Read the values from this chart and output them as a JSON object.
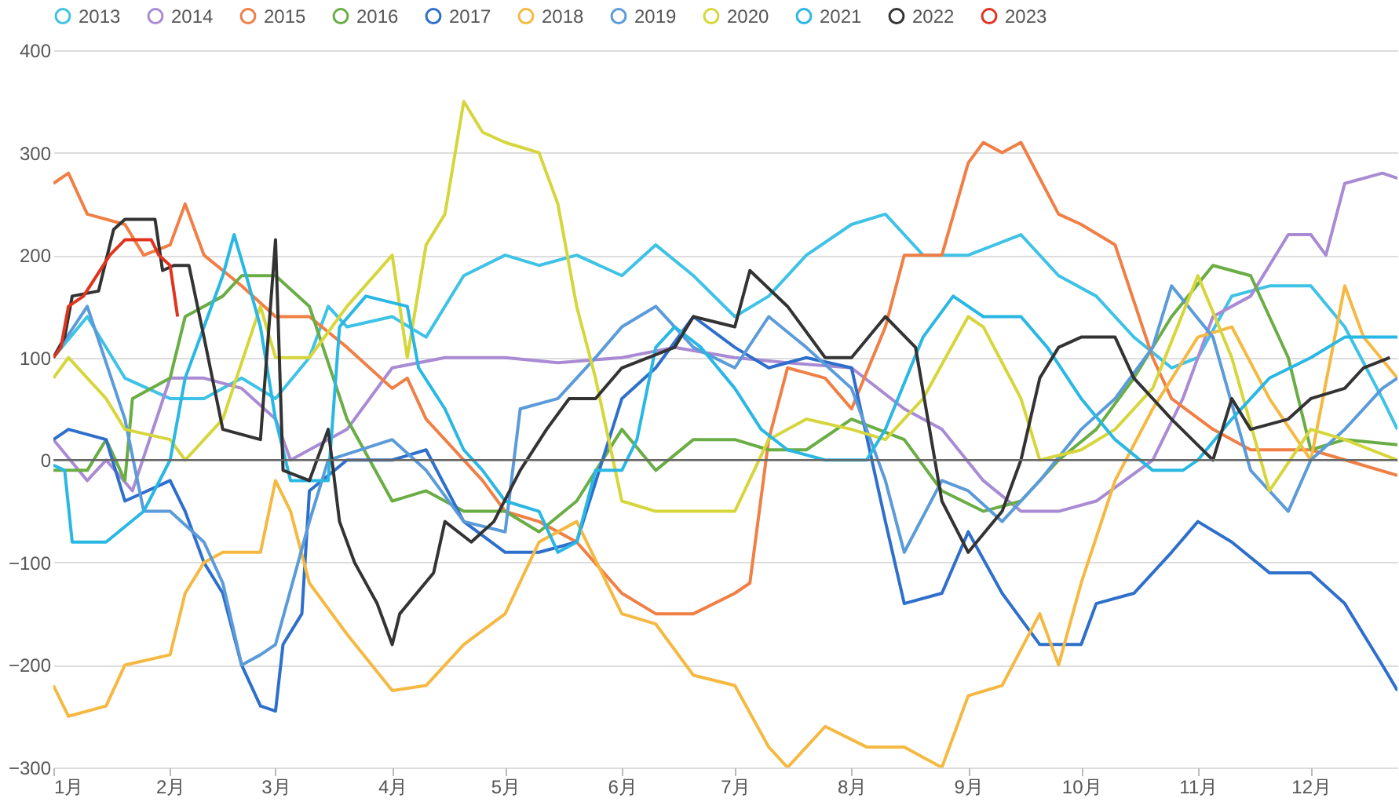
{
  "chart_data": {
    "type": "line",
    "legend": "top",
    "grid": "y",
    "ylim": [
      -300,
      400
    ],
    "yticks": [
      -300,
      -200,
      -100,
      0,
      100,
      200,
      300,
      400
    ],
    "xlim": [
      "--01-01",
      "--12-24"
    ],
    "xticks": [
      {
        "value": "--01-01",
        "label": "1月"
      },
      {
        "value": "--02-01",
        "label": "2月"
      },
      {
        "value": "--03-01",
        "label": "3月"
      },
      {
        "value": "--04-01",
        "label": "4月"
      },
      {
        "value": "--05-01",
        "label": "5月"
      },
      {
        "value": "--06-01",
        "label": "6月"
      },
      {
        "value": "--07-01",
        "label": "7月"
      },
      {
        "value": "--08-01",
        "label": "8月"
      },
      {
        "value": "--09-01",
        "label": "9月"
      },
      {
        "value": "--10-01",
        "label": "10月"
      },
      {
        "value": "--11-01",
        "label": "11月"
      },
      {
        "value": "--12-01",
        "label": "12月"
      }
    ],
    "ref_lines": [
      {
        "axis": "y",
        "value": 0,
        "color": "#666666"
      }
    ],
    "series": [
      {
        "name": "2013",
        "color": "#3ec2e6",
        "x": [
          "--01-01",
          "--01-10",
          "--01-20",
          "--02-01",
          "--02-10",
          "--02-20",
          "--03-01",
          "--03-10",
          "--03-15",
          "--03-20",
          "--04-01",
          "--04-10",
          "--04-20",
          "--05-01",
          "--05-10",
          "--05-20",
          "--06-01",
          "--06-10",
          "--06-20",
          "--07-01",
          "--07-10",
          "--07-20",
          "--08-01",
          "--08-10",
          "--08-20",
          "--09-01",
          "--09-15",
          "--09-25",
          "--10-05",
          "--10-15",
          "--10-25",
          "--11-01",
          "--11-10",
          "--11-20",
          "--12-01",
          "--12-10",
          "--12-20",
          "--12-24"
        ],
        "values": [
          100,
          140,
          80,
          60,
          60,
          80,
          60,
          100,
          150,
          130,
          140,
          120,
          180,
          200,
          190,
          200,
          180,
          210,
          180,
          140,
          160,
          200,
          230,
          240,
          200,
          200,
          220,
          180,
          160,
          120,
          90,
          100,
          160,
          170,
          170,
          130,
          60,
          30
        ]
      },
      {
        "name": "2014",
        "color": "#a98bd4",
        "x": [
          "--01-01",
          "--01-10",
          "--01-15",
          "--01-22",
          "--02-01",
          "--02-10",
          "--02-20",
          "--03-01",
          "--03-05",
          "--03-20",
          "--04-01",
          "--04-15",
          "--05-01",
          "--05-15",
          "--06-01",
          "--06-15",
          "--07-01",
          "--07-15",
          "--08-01",
          "--08-15",
          "--08-25",
          "--09-05",
          "--09-15",
          "--09-25",
          "--10-05",
          "--10-20",
          "--10-28",
          "--11-05",
          "--11-15",
          "--11-25",
          "--12-01",
          "--12-05",
          "--12-10",
          "--12-20",
          "--12-24"
        ],
        "values": [
          20,
          -20,
          0,
          -30,
          80,
          80,
          70,
          40,
          0,
          30,
          90,
          100,
          100,
          95,
          100,
          110,
          100,
          95,
          90,
          50,
          30,
          -20,
          -50,
          -50,
          -40,
          0,
          60,
          140,
          160,
          220,
          220,
          200,
          270,
          280,
          275
        ]
      },
      {
        "name": "2015",
        "color": "#f07f45",
        "x": [
          "--01-01",
          "--01-05",
          "--01-10",
          "--01-20",
          "--01-25",
          "--02-01",
          "--02-05",
          "--02-10",
          "--02-20",
          "--03-01",
          "--03-10",
          "--03-20",
          "--04-01",
          "--04-05",
          "--04-10",
          "--04-15",
          "--04-25",
          "--05-01",
          "--05-10",
          "--05-20",
          "--06-01",
          "--06-10",
          "--06-20",
          "--07-01",
          "--07-05",
          "--07-10",
          "--07-15",
          "--07-25",
          "--08-01",
          "--08-10",
          "--08-15",
          "--08-25",
          "--09-01",
          "--09-05",
          "--09-10",
          "--09-15",
          "--09-25",
          "--10-01",
          "--10-10",
          "--10-20",
          "--10-25",
          "--11-05",
          "--11-15",
          "--12-01",
          "--12-24"
        ],
        "values": [
          270,
          280,
          240,
          230,
          200,
          210,
          250,
          200,
          170,
          140,
          140,
          110,
          70,
          80,
          40,
          20,
          -20,
          -50,
          -60,
          -80,
          -130,
          -150,
          -150,
          -130,
          -120,
          20,
          90,
          80,
          50,
          130,
          200,
          200,
          290,
          310,
          300,
          310,
          240,
          230,
          210,
          100,
          60,
          30,
          10,
          10,
          -15
        ]
      },
      {
        "name": "2016",
        "color": "#6aad45",
        "x": [
          "--01-01",
          "--01-10",
          "--01-15",
          "--01-20",
          "--01-22",
          "--02-01",
          "--02-05",
          "--02-15",
          "--02-20",
          "--03-01",
          "--03-10",
          "--03-20",
          "--04-01",
          "--04-10",
          "--04-20",
          "--05-01",
          "--05-10",
          "--05-20",
          "--06-01",
          "--06-10",
          "--06-20",
          "--07-01",
          "--07-10",
          "--07-20",
          "--08-01",
          "--08-15",
          "--08-25",
          "--09-05",
          "--09-15",
          "--09-25",
          "--10-05",
          "--10-15",
          "--10-25",
          "--11-05",
          "--11-15",
          "--11-25",
          "--12-01",
          "--12-10",
          "--12-24"
        ],
        "values": [
          -10,
          -10,
          20,
          -20,
          60,
          80,
          140,
          160,
          180,
          180,
          150,
          40,
          -40,
          -30,
          -50,
          -50,
          -70,
          -40,
          30,
          -10,
          20,
          20,
          10,
          10,
          40,
          20,
          -30,
          -50,
          -40,
          0,
          30,
          80,
          140,
          190,
          180,
          100,
          10,
          20,
          15
        ]
      },
      {
        "name": "2017",
        "color": "#2f6fcc",
        "x": [
          "--01-01",
          "--01-05",
          "--01-15",
          "--01-20",
          "--02-01",
          "--02-05",
          "--02-10",
          "--02-15",
          "--02-20",
          "--02-25",
          "--03-01",
          "--03-03",
          "--03-08",
          "--03-10",
          "--03-20",
          "--04-01",
          "--04-10",
          "--04-20",
          "--05-01",
          "--05-10",
          "--05-20",
          "--06-01",
          "--06-10",
          "--06-20",
          "--07-01",
          "--07-10",
          "--07-20",
          "--08-01",
          "--08-10",
          "--08-15",
          "--08-25",
          "--09-01",
          "--09-10",
          "--09-20",
          "--10-01",
          "--10-05",
          "--10-15",
          "--10-25",
          "--11-01",
          "--11-10",
          "--11-20",
          "--12-01",
          "--12-10",
          "--12-20",
          "--12-24"
        ],
        "values": [
          20,
          30,
          20,
          -40,
          -20,
          -50,
          -100,
          -130,
          -200,
          -240,
          -245,
          -180,
          -150,
          -30,
          0,
          0,
          10,
          -60,
          -90,
          -90,
          -80,
          60,
          90,
          140,
          110,
          90,
          100,
          90,
          -60,
          -140,
          -130,
          -70,
          -130,
          -180,
          -180,
          -140,
          -130,
          -90,
          -60,
          -80,
          -110,
          -110,
          -140,
          -200,
          -225
        ]
      },
      {
        "name": "2018",
        "color": "#f5b942",
        "x": [
          "--01-01",
          "--01-05",
          "--01-15",
          "--01-20",
          "--02-01",
          "--02-05",
          "--02-10",
          "--02-15",
          "--02-25",
          "--03-01",
          "--03-05",
          "--03-10",
          "--03-20",
          "--04-01",
          "--04-10",
          "--04-20",
          "--05-01",
          "--05-10",
          "--05-20",
          "--06-01",
          "--06-10",
          "--06-20",
          "--07-01",
          "--07-10",
          "--07-15",
          "--07-25",
          "--08-05",
          "--08-15",
          "--08-25",
          "--09-01",
          "--09-10",
          "--09-20",
          "--09-25",
          "--10-01",
          "--10-10",
          "--10-20",
          "--11-01",
          "--11-10",
          "--11-20",
          "--12-01",
          "--12-10",
          "--12-15",
          "--12-24"
        ],
        "values": [
          -220,
          -250,
          -240,
          -200,
          -190,
          -130,
          -100,
          -90,
          -90,
          -20,
          -50,
          -120,
          -170,
          -225,
          -220,
          -180,
          -150,
          -80,
          -60,
          -150,
          -160,
          -210,
          -220,
          -280,
          -300,
          -260,
          -280,
          -280,
          -300,
          -230,
          -220,
          -150,
          -200,
          -120,
          -20,
          50,
          120,
          130,
          60,
          0,
          170,
          120,
          80
        ]
      },
      {
        "name": "2019",
        "color": "#5b9bd9",
        "x": [
          "--01-01",
          "--01-10",
          "--01-20",
          "--01-25",
          "--02-01",
          "--02-10",
          "--02-15",
          "--02-20",
          "--02-25",
          "--03-01",
          "--03-10",
          "--03-15",
          "--04-01",
          "--04-10",
          "--04-20",
          "--05-01",
          "--05-05",
          "--05-15",
          "--05-25",
          "--06-01",
          "--06-10",
          "--06-20",
          "--07-01",
          "--07-10",
          "--07-20",
          "--08-01",
          "--08-10",
          "--08-15",
          "--08-25",
          "--09-01",
          "--09-10",
          "--09-20",
          "--10-01",
          "--10-10",
          "--10-20",
          "--10-25",
          "--11-05",
          "--11-15",
          "--11-25",
          "--12-01",
          "--12-10",
          "--12-20",
          "--12-24"
        ],
        "values": [
          100,
          150,
          40,
          -50,
          -50,
          -80,
          -120,
          -200,
          -190,
          -180,
          -60,
          0,
          20,
          -10,
          -60,
          -70,
          50,
          60,
          100,
          130,
          150,
          110,
          90,
          140,
          110,
          70,
          -20,
          -90,
          -20,
          -30,
          -60,
          -20,
          30,
          60,
          110,
          170,
          120,
          -10,
          -50,
          0,
          30,
          70,
          80
        ]
      },
      {
        "name": "2020",
        "color": "#d6d63c",
        "x": [
          "--01-01",
          "--01-05",
          "--01-15",
          "--01-20",
          "--02-01",
          "--02-05",
          "--02-15",
          "--02-25",
          "--03-01",
          "--03-10",
          "--03-20",
          "--04-01",
          "--04-05",
          "--04-10",
          "--04-15",
          "--04-20",
          "--04-25",
          "--05-01",
          "--05-10",
          "--05-15",
          "--05-20",
          "--05-25",
          "--06-01",
          "--06-10",
          "--06-20",
          "--07-01",
          "--07-10",
          "--07-20",
          "--08-01",
          "--08-10",
          "--08-20",
          "--09-01",
          "--09-05",
          "--09-15",
          "--09-20",
          "--10-01",
          "--10-10",
          "--10-20",
          "--11-01",
          "--11-10",
          "--11-20",
          "--12-01",
          "--12-10",
          "--12-24"
        ],
        "values": [
          80,
          100,
          60,
          30,
          20,
          0,
          40,
          150,
          100,
          100,
          150,
          200,
          100,
          210,
          240,
          350,
          320,
          310,
          300,
          250,
          150,
          80,
          -40,
          -50,
          -50,
          -50,
          20,
          40,
          30,
          20,
          60,
          140,
          130,
          60,
          0,
          10,
          30,
          70,
          180,
          100,
          -30,
          30,
          20,
          0
        ]
      },
      {
        "name": "2021",
        "color": "#29b7e3",
        "x": [
          "--01-01",
          "--01-04",
          "--01-06",
          "--01-15",
          "--01-25",
          "--02-01",
          "--02-05",
          "--02-10",
          "--02-15",
          "--02-18",
          "--02-22",
          "--02-25",
          "--03-01",
          "--03-05",
          "--03-15",
          "--03-18",
          "--03-25",
          "--04-05",
          "--04-08",
          "--04-15",
          "--04-20",
          "--04-25",
          "--05-01",
          "--05-10",
          "--05-15",
          "--05-20",
          "--05-25",
          "--06-01",
          "--06-05",
          "--06-10",
          "--06-15",
          "--06-22",
          "--07-01",
          "--07-08",
          "--07-15",
          "--07-25",
          "--08-05",
          "--08-10",
          "--08-20",
          "--08-28",
          "--09-05",
          "--09-15",
          "--09-22",
          "--10-01",
          "--10-10",
          "--10-20",
          "--10-28",
          "--11-01",
          "--11-10",
          "--11-20",
          "--12-01",
          "--12-10",
          "--12-24"
        ],
        "values": [
          -5,
          -10,
          -80,
          -80,
          -50,
          0,
          80,
          130,
          180,
          220,
          170,
          130,
          40,
          -20,
          -20,
          130,
          160,
          150,
          90,
          50,
          10,
          -10,
          -40,
          -50,
          -90,
          -80,
          -10,
          -10,
          20,
          110,
          130,
          110,
          70,
          30,
          10,
          0,
          0,
          30,
          120,
          160,
          140,
          140,
          110,
          60,
          20,
          -10,
          -10,
          0,
          40,
          80,
          100,
          120,
          120
        ]
      },
      {
        "name": "2022",
        "color": "#333333",
        "x": [
          "--01-01",
          "--01-04",
          "--01-06",
          "--01-13",
          "--01-17",
          "--01-20",
          "--01-28",
          "--01-30",
          "--02-02",
          "--02-06",
          "--02-10",
          "--02-15",
          "--02-25",
          "--03-01",
          "--03-03",
          "--03-10",
          "--03-15",
          "--03-18",
          "--03-22",
          "--03-28",
          "--04-01",
          "--04-03",
          "--04-12",
          "--04-15",
          "--04-22",
          "--04-28",
          "--05-05",
          "--05-12",
          "--05-18",
          "--05-25",
          "--06-01",
          "--06-15",
          "--06-20",
          "--07-01",
          "--07-05",
          "--07-15",
          "--07-25",
          "--08-01",
          "--08-10",
          "--08-18",
          "--08-25",
          "--09-01",
          "--09-10",
          "--09-15",
          "--09-20",
          "--09-25",
          "--10-01",
          "--10-10",
          "--10-15",
          "--10-25",
          "--11-05",
          "--11-10",
          "--11-15",
          "--11-25",
          "--12-01",
          "--12-10",
          "--12-15",
          "--12-22"
        ],
        "values": [
          100,
          120,
          160,
          165,
          225,
          235,
          235,
          185,
          190,
          190,
          120,
          30,
          20,
          215,
          -10,
          -20,
          30,
          -60,
          -100,
          -140,
          -180,
          -150,
          -110,
          -60,
          -80,
          -60,
          -10,
          30,
          60,
          60,
          90,
          110,
          140,
          130,
          185,
          150,
          100,
          100,
          140,
          110,
          -40,
          -90,
          -50,
          0,
          80,
          110,
          120,
          120,
          80,
          40,
          0,
          60,
          30,
          40,
          60,
          70,
          90,
          100
        ]
      },
      {
        "name": "2023",
        "color": "#e0341e",
        "x": [
          "--01-01",
          "--01-03",
          "--01-05",
          "--01-09",
          "--01-16",
          "--01-20",
          "--01-27",
          "--01-29",
          "--02-01",
          "--02-03"
        ],
        "values": [
          100,
          110,
          150,
          160,
          200,
          215,
          215,
          200,
          190,
          140
        ]
      }
    ]
  }
}
